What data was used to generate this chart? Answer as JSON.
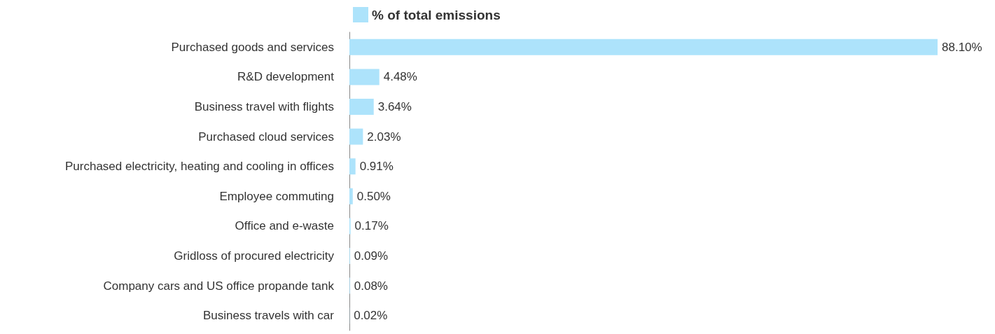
{
  "chart_data": {
    "type": "bar",
    "orientation": "horizontal",
    "legend": "top",
    "categories": [
      "Purchased goods and services",
      "R&D development",
      "Business travel with flights",
      "Purchased cloud services",
      "Purchased electricity, heating and cooling in offices",
      "Employee commuting",
      "Office and e-waste",
      "Gridloss of procured electricity",
      "Company cars and US office propande tank",
      "Business travels with car"
    ],
    "series": [
      {
        "name": "% of total emissions",
        "color": "#ade3fb",
        "values": [
          88.1,
          4.48,
          3.64,
          2.03,
          0.91,
          0.5,
          0.17,
          0.09,
          0.08,
          0.02
        ],
        "value_labels": [
          "88.10%",
          "4.48%",
          "3.64%",
          "2.03%",
          "0.91%",
          "0.50%",
          "0.17%",
          "0.09%",
          "0.08%",
          "0.02%"
        ]
      }
    ]
  }
}
